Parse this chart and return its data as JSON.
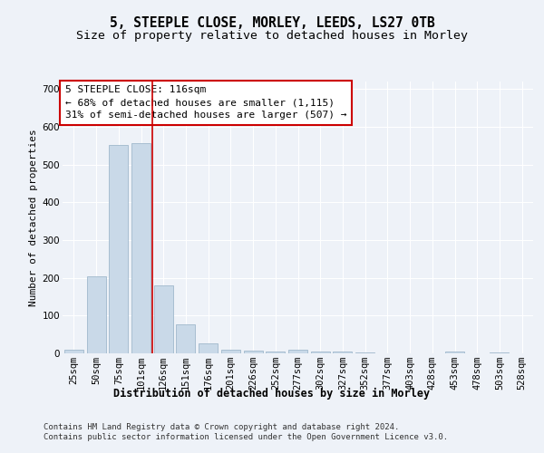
{
  "title1": "5, STEEPLE CLOSE, MORLEY, LEEDS, LS27 0TB",
  "title2": "Size of property relative to detached houses in Morley",
  "xlabel": "Distribution of detached houses by size in Morley",
  "ylabel": "Number of detached properties",
  "categories": [
    "25sqm",
    "50sqm",
    "75sqm",
    "101sqm",
    "126sqm",
    "151sqm",
    "176sqm",
    "201sqm",
    "226sqm",
    "252sqm",
    "277sqm",
    "302sqm",
    "327sqm",
    "352sqm",
    "377sqm",
    "403sqm",
    "428sqm",
    "453sqm",
    "478sqm",
    "503sqm",
    "528sqm"
  ],
  "values": [
    10,
    203,
    551,
    558,
    180,
    78,
    27,
    10,
    7,
    5,
    10,
    6,
    4,
    3,
    1,
    0,
    0,
    5,
    0,
    3,
    0
  ],
  "bar_color": "#c9d9e8",
  "bar_edge_color": "#a0b8cc",
  "vline_color": "#cc0000",
  "annotation_text": "5 STEEPLE CLOSE: 116sqm\n← 68% of detached houses are smaller (1,115)\n31% of semi-detached houses are larger (507) →",
  "annotation_box_color": "#ffffff",
  "annotation_box_edge_color": "#cc0000",
  "ylim": [
    0,
    720
  ],
  "yticks": [
    0,
    100,
    200,
    300,
    400,
    500,
    600,
    700
  ],
  "footer_text": "Contains HM Land Registry data © Crown copyright and database right 2024.\nContains public sector information licensed under the Open Government Licence v3.0.",
  "bg_color": "#eef2f8",
  "plot_bg_color": "#eef2f8",
  "grid_color": "#ffffff",
  "title1_fontsize": 10.5,
  "title2_fontsize": 9.5,
  "xlabel_fontsize": 8.5,
  "ylabel_fontsize": 8,
  "tick_fontsize": 7.5,
  "annotation_fontsize": 8,
  "footer_fontsize": 6.5
}
